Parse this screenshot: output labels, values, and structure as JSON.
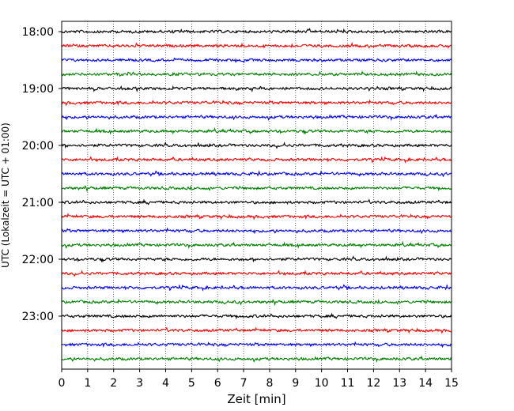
{
  "chart_data": {
    "type": "line",
    "title": "",
    "xlabel": "Zeit  [min]",
    "ylabel": "UTC (Lokalzeit = UTC + 01:00)",
    "xlim": [
      0,
      15
    ],
    "x_ticks": [
      0,
      1,
      2,
      3,
      4,
      5,
      6,
      7,
      8,
      9,
      10,
      11,
      12,
      13,
      14,
      15
    ],
    "y_ticks": [
      {
        "label": "18:00",
        "trace_index": 0
      },
      {
        "label": "19:00",
        "trace_index": 4
      },
      {
        "label": "20:00",
        "trace_index": 8
      },
      {
        "label": "21:00",
        "trace_index": 12
      },
      {
        "label": "22:00",
        "trace_index": 16
      },
      {
        "label": "23:00",
        "trace_index": 20
      }
    ],
    "grid": {
      "vertical": true,
      "style": "dotted"
    },
    "trace_interval_minutes": 15,
    "trace_count": 24,
    "trace_colors": [
      "#000000",
      "#ff0000",
      "#0000ff",
      "#008000"
    ]
  }
}
